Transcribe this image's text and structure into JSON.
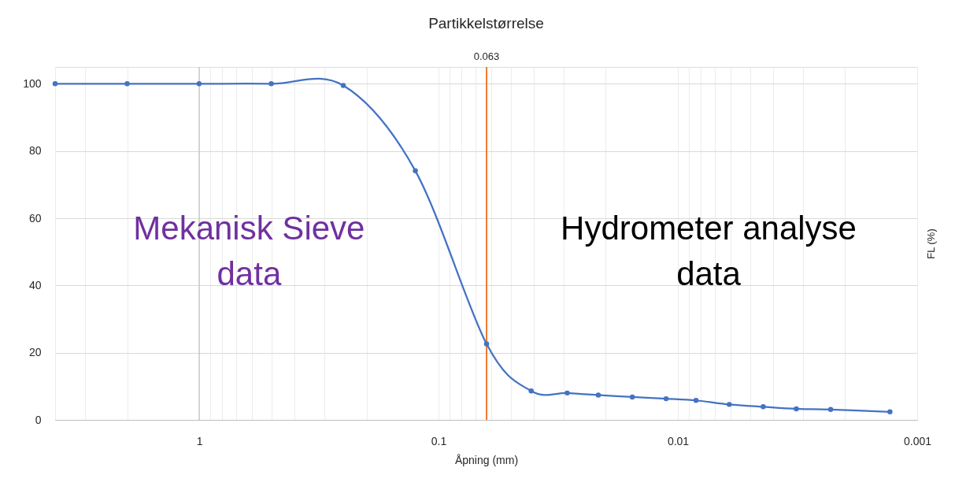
{
  "chart_data": {
    "type": "line",
    "title": "Partikkelstørrelse",
    "xlabel": "Åpning (mm)",
    "ylabel": "FL (%)",
    "x": [
      4,
      2,
      1,
      0.5,
      0.25,
      0.125,
      0.063,
      0.041,
      0.029,
      0.0215,
      0.0155,
      0.0112,
      0.0084,
      0.0061,
      0.0044,
      0.0032,
      0.0023,
      0.0013
    ],
    "series": [
      {
        "color": "#4472c4",
        "values": [
          100,
          100,
          100,
          100,
          99.5,
          74.1,
          22.6,
          8.6,
          8.0,
          7.4,
          6.8,
          6.3,
          5.8,
          4.6,
          3.9,
          3.3,
          3.1,
          2.4
        ]
      }
    ],
    "log": "x",
    "xlim": [
      4,
      0.001
    ],
    "xticks": [
      {
        "value": 4,
        "label": null
      },
      {
        "value": 3,
        "label": null
      },
      {
        "value": 2,
        "label": null
      },
      1,
      {
        "value": 0.9,
        "label": null
      },
      {
        "value": 0.8,
        "label": null
      },
      {
        "value": 0.7,
        "label": null
      },
      {
        "value": 0.6,
        "label": null
      },
      {
        "value": 0.5,
        "label": null
      },
      {
        "value": 0.4,
        "label": null
      },
      {
        "value": 0.3,
        "label": null
      },
      {
        "value": 0.2,
        "label": null
      },
      0.1,
      {
        "value": 0.09,
        "label": null
      },
      {
        "value": 0.08,
        "label": null
      },
      {
        "value": 0.07,
        "label": null
      },
      {
        "value": 0.06,
        "label": null
      },
      {
        "value": 0.05,
        "label": null
      },
      {
        "value": 0.04,
        "label": null
      },
      {
        "value": 0.03,
        "label": null
      },
      {
        "value": 0.02,
        "label": null
      },
      0.01,
      {
        "value": 0.009,
        "label": null
      },
      {
        "value": 0.008,
        "label": null
      },
      {
        "value": 0.007,
        "label": null
      },
      {
        "value": 0.006,
        "label": null
      },
      {
        "value": 0.005,
        "label": null
      },
      {
        "value": 0.004,
        "label": null
      },
      {
        "value": 0.003,
        "label": null
      },
      {
        "value": 0.002,
        "label": null
      },
      0.001
    ],
    "ylim": [
      0,
      105
    ],
    "yticks": [
      0,
      20,
      40,
      60,
      80,
      100
    ],
    "grid": true,
    "marker": "circle",
    "line_style": "solid",
    "ref_lines": [
      {
        "axis": "x",
        "value": 1,
        "color": "#bfbfbf"
      },
      {
        "axis": "x",
        "value": 0.063,
        "label": "0.063",
        "color": "#ed7d31"
      }
    ],
    "annotations": [
      "Mekanisk Sieve data",
      "Hydrometer analyse data"
    ]
  }
}
